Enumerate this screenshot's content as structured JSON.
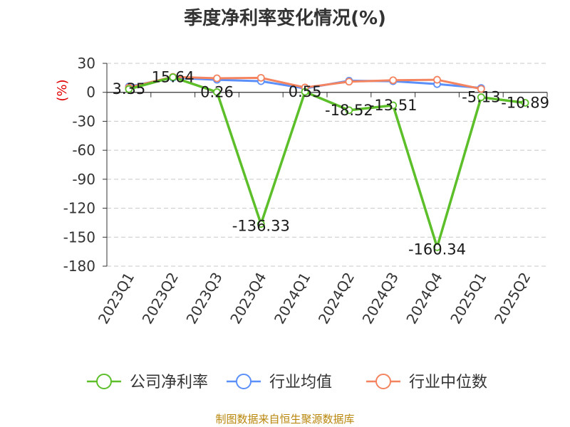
{
  "chart_data": {
    "type": "line",
    "title": "季度净利率变化情况(%)",
    "ylabel": "(%)",
    "ylim": [
      -180,
      30
    ],
    "yticks": [
      30,
      0,
      -30,
      -60,
      -90,
      -120,
      -150,
      -180
    ],
    "categories": [
      "2023Q1",
      "2023Q2",
      "2023Q3",
      "2023Q4",
      "2024Q1",
      "2024Q2",
      "2024Q3",
      "2024Q4",
      "2025Q1",
      "2025Q2"
    ],
    "grid": true,
    "legend_position": "bottom",
    "series": [
      {
        "name": "公司净利率",
        "color": "#5cbf2a",
        "values": [
          3.35,
          15.64,
          0.26,
          -136.33,
          0.55,
          -18.52,
          -13.51,
          -160.34,
          -5.13,
          -10.89
        ],
        "labels": [
          "3.35",
          "15.64",
          "0.26",
          "-136.33",
          "0.55",
          "-18.52",
          "-13.51",
          "-160.34",
          "-5.13",
          "-10.89"
        ]
      },
      {
        "name": "行业均值",
        "color": "#5b8ff9",
        "values": [
          6,
          15,
          13,
          11.5,
          4,
          12,
          11.5,
          8.5,
          4.5,
          null
        ]
      },
      {
        "name": "行业中位数",
        "color": "#f4845f",
        "values": [
          5,
          16,
          14.5,
          15,
          5,
          11,
          12.5,
          13,
          3.5,
          null
        ]
      }
    ]
  },
  "source": "制图数据来自恒生聚源数据库"
}
